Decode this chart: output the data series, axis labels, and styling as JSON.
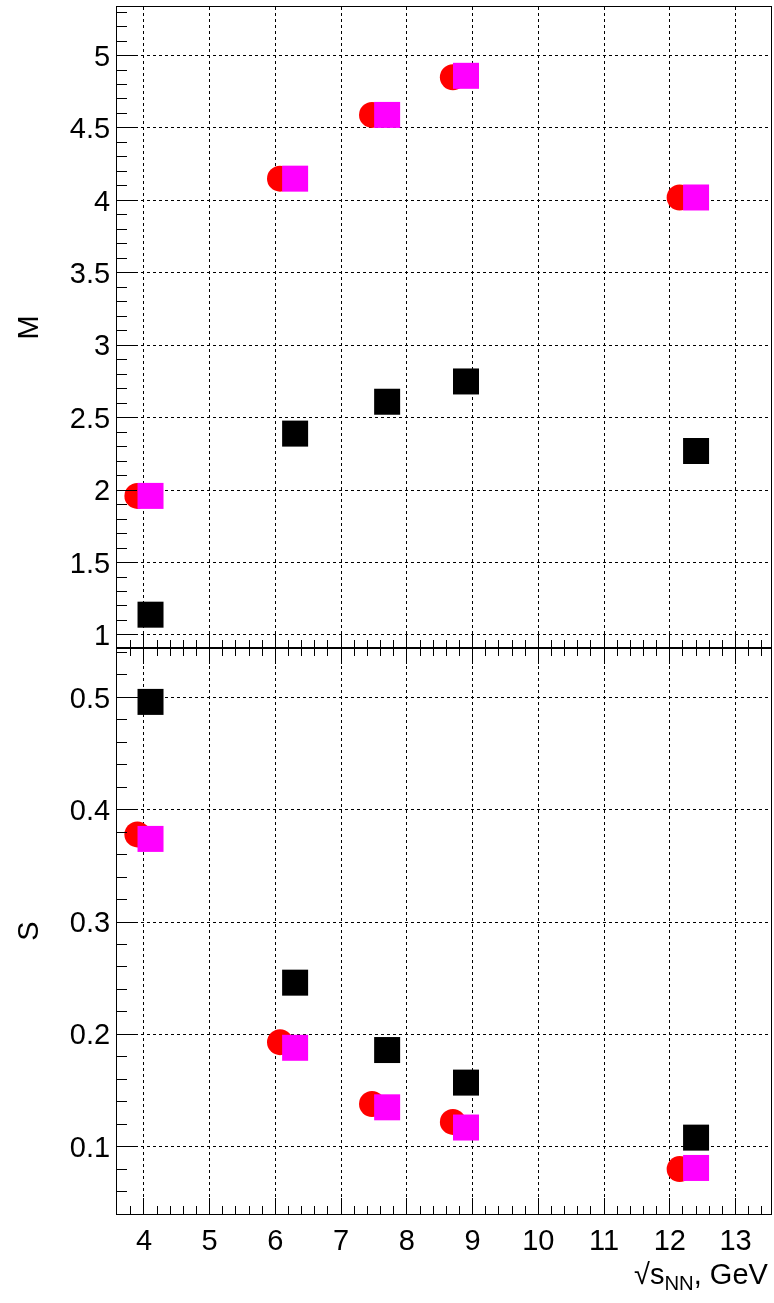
{
  "chart_data": [
    {
      "type": "scatter",
      "ylabel": "M",
      "xlim": [
        3.59,
        13.54
      ],
      "xticks": [
        4,
        5,
        6,
        7,
        8,
        9,
        10,
        11,
        12,
        13
      ],
      "ylim": [
        0.91,
        5.335
      ],
      "yticks": [
        1,
        1.5,
        2,
        2.5,
        3,
        3.5,
        4,
        4.5,
        5
      ],
      "tick_labels": "y",
      "grid": true,
      "series": [
        {
          "color": "#ff0000",
          "marker": "circle",
          "x": [
            3.9,
            6.07,
            7.47,
            8.7,
            12.15
          ],
          "values": [
            1.96,
            4.15,
            4.59,
            4.85,
            4.02
          ]
        },
        {
          "color": "#ff00ff",
          "marker": "square",
          "x": [
            4.1,
            6.3,
            7.7,
            8.9,
            12.4
          ],
          "values": [
            1.96,
            4.15,
            4.59,
            4.86,
            4.02
          ]
        },
        {
          "color": "#000000",
          "marker": "square",
          "x": [
            4.1,
            6.3,
            7.7,
            8.9,
            12.4
          ],
          "values": [
            1.14,
            2.39,
            2.61,
            2.75,
            2.27
          ]
        }
      ]
    },
    {
      "type": "scatter",
      "ylabel": "S",
      "xlabel": "√s$_{NN}$, GeV",
      "xlim": [
        3.59,
        13.54
      ],
      "xticks": [
        4,
        5,
        6,
        7,
        8,
        9,
        10,
        11,
        12,
        13
      ],
      "ylim": [
        0.04,
        0.544
      ],
      "yticks": [
        0.1,
        0.2,
        0.3,
        0.4,
        0.5
      ],
      "grid": true,
      "series": [
        {
          "color": "#ff0000",
          "marker": "circle",
          "x": [
            3.9,
            6.07,
            7.47,
            8.7,
            12.15
          ],
          "values": [
            0.378,
            0.193,
            0.138,
            0.122,
            0.08
          ]
        },
        {
          "color": "#ff00ff",
          "marker": "square",
          "x": [
            4.1,
            6.3,
            7.7,
            8.9,
            12.4
          ],
          "values": [
            0.374,
            0.188,
            0.135,
            0.117,
            0.081
          ]
        },
        {
          "color": "#000000",
          "marker": "square",
          "x": [
            4.1,
            6.3,
            7.7,
            8.9,
            12.4
          ],
          "values": [
            0.496,
            0.246,
            0.186,
            0.157,
            0.108
          ]
        }
      ]
    }
  ]
}
